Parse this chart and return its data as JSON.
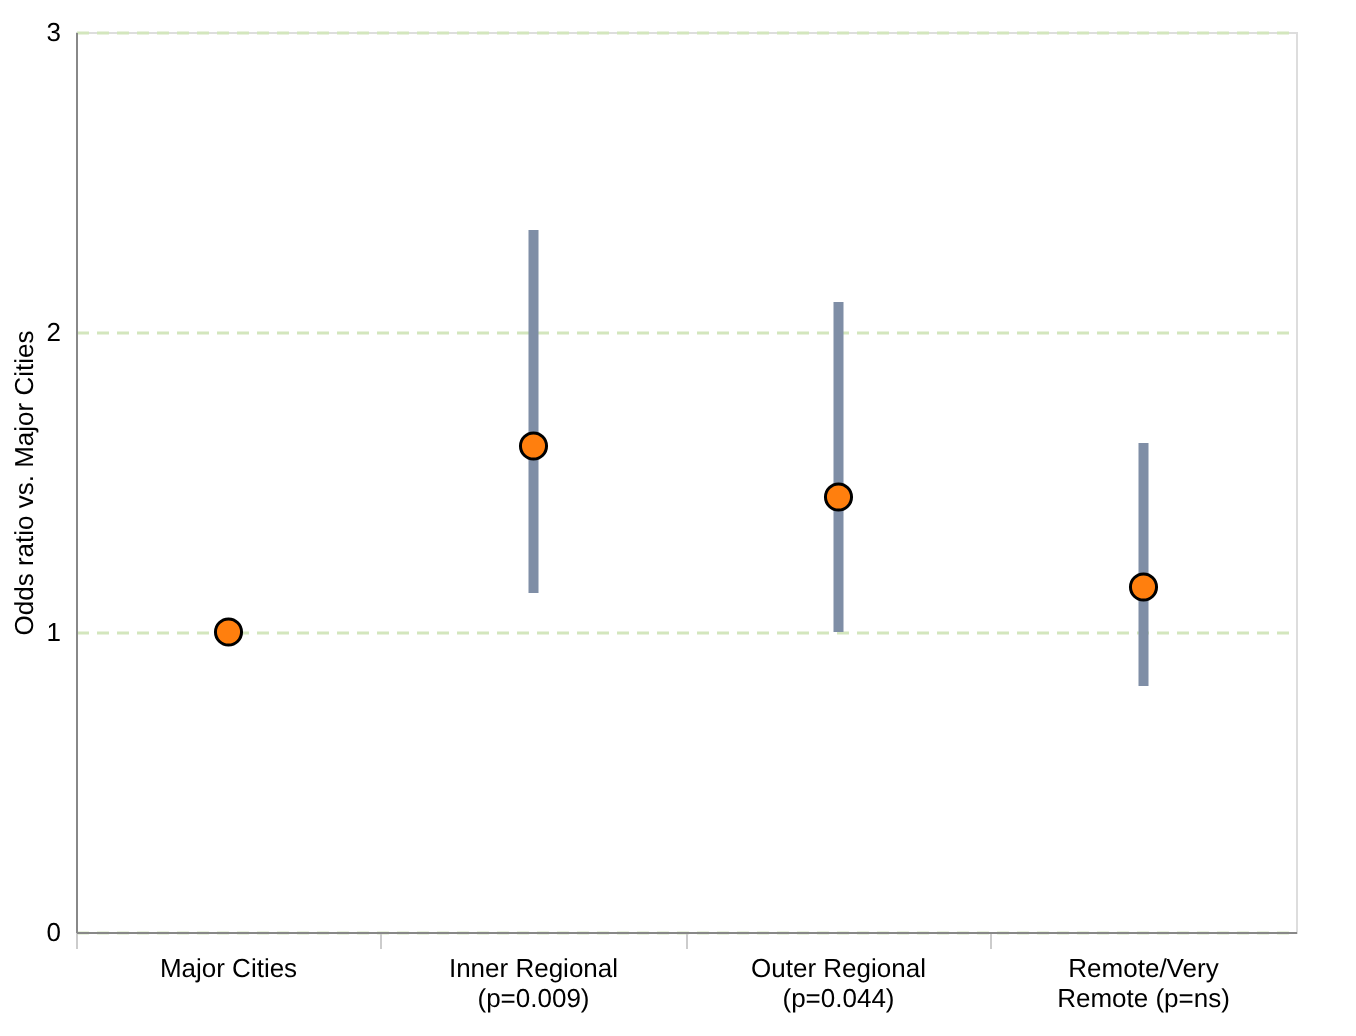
{
  "chart_data": {
    "type": "scatter",
    "ylabel": "Odds ratio vs. Major Cities",
    "categories": [
      "Major Cities",
      "Inner Regional\n(p=0.009)",
      "Outer Regional\n(p=0.044)",
      "Remote/Very\nRemote (p=ns)"
    ],
    "series": [
      {
        "color": "#ff7f0e",
        "values": [
          1.0,
          1.62,
          1.45,
          1.15
        ],
        "errors": [
          null,
          [
            1.13,
            2.34
          ],
          [
            1.0,
            2.1
          ],
          [
            0.82,
            1.63
          ]
        ]
      }
    ],
    "marker": "circle",
    "ylim": [
      0,
      3
    ],
    "yticks": [
      0,
      1,
      2,
      3
    ],
    "grid": "y"
  }
}
